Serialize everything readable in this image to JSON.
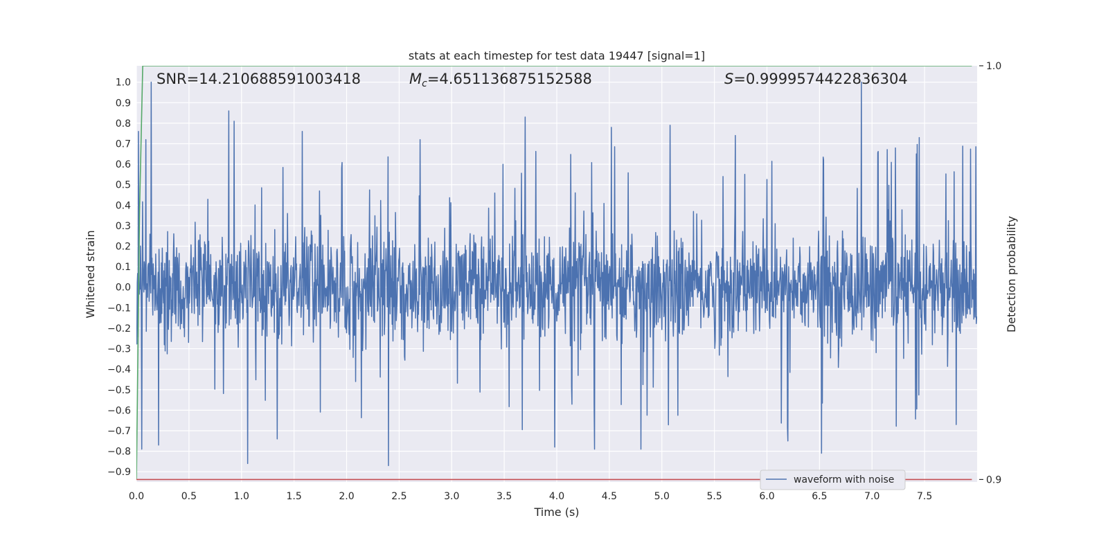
{
  "chart_data": {
    "type": "line",
    "title": "stats at each timestep for test data 19447 [signal=1]",
    "xlabel": "Time (s)",
    "ylabel": "Whitened strain",
    "y2label": "Detection probability",
    "xlim": [
      0.0,
      8.0
    ],
    "ylim": [
      -0.95,
      1.08
    ],
    "y2lim": [
      0.8994,
      1.0
    ],
    "x_ticks": [
      "0.0",
      "0.5",
      "1.0",
      "1.5",
      "2.0",
      "2.5",
      "3.0",
      "3.5",
      "4.0",
      "4.5",
      "5.0",
      "5.5",
      "6.0",
      "6.5",
      "7.0",
      "7.5"
    ],
    "y_ticks": [
      "1.0",
      "0.9",
      "0.8",
      "0.7",
      "0.6",
      "0.5",
      "0.4",
      "0.3",
      "0.2",
      "0.1",
      "0.0",
      "−0.1",
      "−0.2",
      "−0.3",
      "−0.4",
      "−0.5",
      "−0.6",
      "−0.7",
      "−0.8",
      "−0.9"
    ],
    "y2_ticks": [
      "1.0",
      "0.9"
    ],
    "grid": true,
    "legend": {
      "position": "lower-right",
      "entries": [
        "waveform with noise"
      ]
    },
    "annotations": {
      "snr": "SNR=14.210688591003418",
      "mc_symbol": "M",
      "mc_sub": "c",
      "mc_value": "=4.651136875152588",
      "s_symbol": "S",
      "s_value": "=0.9999574422836304"
    },
    "series": [
      {
        "name": "waveform with noise",
        "axis": "left",
        "color": "#4c72b0",
        "description": "dense noisy whitened strain, roughly ±0.3 core amplitude with spikes to ±0.9",
        "sample_rate_hz": 256,
        "duration_s": 8.0,
        "core_amplitude": 0.13,
        "spikes": [
          {
            "x": 0.02,
            "y": 0.76
          },
          {
            "x": 0.05,
            "y": -0.79
          },
          {
            "x": 0.14,
            "y": 1.0
          },
          {
            "x": 0.09,
            "y": 0.72
          },
          {
            "x": 0.21,
            "y": -0.77
          },
          {
            "x": 0.88,
            "y": 0.86
          },
          {
            "x": 0.93,
            "y": 0.81
          },
          {
            "x": 1.06,
            "y": -0.86
          },
          {
            "x": 1.34,
            "y": -0.74
          },
          {
            "x": 1.58,
            "y": 0.76
          },
          {
            "x": 2.4,
            "y": -0.87
          },
          {
            "x": 3.7,
            "y": 0.83
          },
          {
            "x": 3.98,
            "y": -0.78
          },
          {
            "x": 4.36,
            "y": -0.79
          },
          {
            "x": 4.52,
            "y": 0.78
          },
          {
            "x": 4.8,
            "y": -0.79
          },
          {
            "x": 5.08,
            "y": 0.79
          },
          {
            "x": 6.52,
            "y": -0.81
          },
          {
            "x": 6.9,
            "y": 1.0
          },
          {
            "x": 6.2,
            "y": -0.75
          },
          {
            "x": 7.45,
            "y": 0.73
          },
          {
            "x": 7.8,
            "y": -0.67
          },
          {
            "x": 2.7,
            "y": 0.72
          },
          {
            "x": 5.7,
            "y": 0.74
          }
        ]
      },
      {
        "name": "",
        "axis": "right",
        "color": "#55a868",
        "x": [
          0.0,
          0.03,
          0.06,
          0.08,
          7.95
        ],
        "values": [
          0.9,
          0.965,
          1.0,
          1.0,
          1.0
        ]
      },
      {
        "name": "",
        "axis": "right",
        "color": "#c44e52",
        "x": [
          0.0,
          7.95
        ],
        "values": [
          0.9,
          0.9
        ]
      }
    ]
  }
}
